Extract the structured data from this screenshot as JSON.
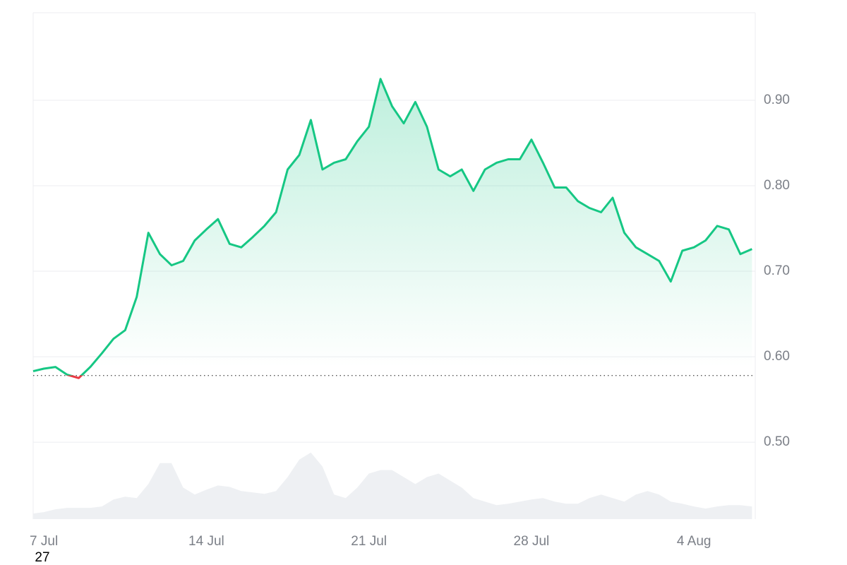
{
  "chart_data": {
    "type": "line",
    "x": [
      -0.46,
      0,
      0.5,
      1,
      1.5,
      2,
      2.5,
      3,
      3.5,
      4,
      4.5,
      5,
      5.5,
      6,
      6.5,
      7,
      7.5,
      8,
      8.5,
      9,
      9.5,
      10,
      10.5,
      11,
      11.5,
      12,
      12.5,
      13,
      13.5,
      14,
      14.5,
      15,
      15.5,
      16,
      16.5,
      17,
      17.5,
      18,
      18.5,
      19,
      19.5,
      20,
      20.5,
      21,
      21.5,
      22,
      22.5,
      23,
      23.5,
      24,
      24.5,
      25,
      25.5,
      26,
      26.5,
      27,
      27.5,
      28,
      28.5,
      29,
      29.5,
      30,
      30.5
    ],
    "series": [
      {
        "color": "#16c784",
        "below_color": "#ea3943",
        "values": [
          0.583,
          0.586,
          0.588,
          0.579,
          0.575,
          0.588,
          0.604,
          0.621,
          0.631,
          0.67,
          0.745,
          0.72,
          0.707,
          0.712,
          0.736,
          0.749,
          0.761,
          0.732,
          0.728,
          0.74,
          0.753,
          0.769,
          0.819,
          0.836,
          0.877,
          0.819,
          0.827,
          0.831,
          0.852,
          0.869,
          0.925,
          0.893,
          0.873,
          0.898,
          0.869,
          0.819,
          0.811,
          0.819,
          0.794,
          0.819,
          0.827,
          0.831,
          0.831,
          0.854,
          0.827,
          0.798,
          0.798,
          0.782,
          0.774,
          0.769,
          0.786,
          0.745,
          0.728,
          0.72,
          0.712,
          0.688,
          0.724,
          0.728,
          0.736,
          0.753,
          0.749,
          0.72,
          0.726
        ]
      },
      {
        "color": "#eef0f3",
        "axis": "y2",
        "values": [
          8,
          10,
          14,
          16,
          16,
          16,
          18,
          28,
          32,
          30,
          50,
          80,
          80,
          45,
          35,
          42,
          48,
          46,
          40,
          38,
          36,
          40,
          60,
          85,
          95,
          75,
          35,
          30,
          45,
          65,
          70,
          70,
          60,
          50,
          60,
          65,
          55,
          45,
          30,
          25,
          20,
          22,
          25,
          28,
          30,
          25,
          22,
          22,
          30,
          35,
          30,
          25,
          35,
          40,
          35,
          25,
          22,
          18,
          15,
          18,
          20,
          20,
          18
        ]
      }
    ],
    "baseline": 0.578,
    "xlim": [
      -0.46,
      30.64
    ],
    "xticks": [
      {
        "value": 0,
        "label": "7 Jul"
      },
      {
        "value": 7,
        "label": "14 Jul"
      },
      {
        "value": 14,
        "label": "21 Jul"
      },
      {
        "value": 21,
        "label": "28 Jul"
      },
      {
        "value": 28,
        "label": "4 Aug"
      }
    ],
    "ylim": [
      0.41,
      1.0
    ],
    "yticks": [
      {
        "value": 0.5,
        "label": "0.50"
      },
      {
        "value": 0.6,
        "label": "0.60"
      },
      {
        "value": 0.7,
        "label": "0.70"
      },
      {
        "value": 0.8,
        "label": "0.80"
      },
      {
        "value": 0.9,
        "label": "0.90"
      }
    ],
    "y2lim": [
      0,
      720
    ],
    "grid": true,
    "annotation": "27"
  }
}
